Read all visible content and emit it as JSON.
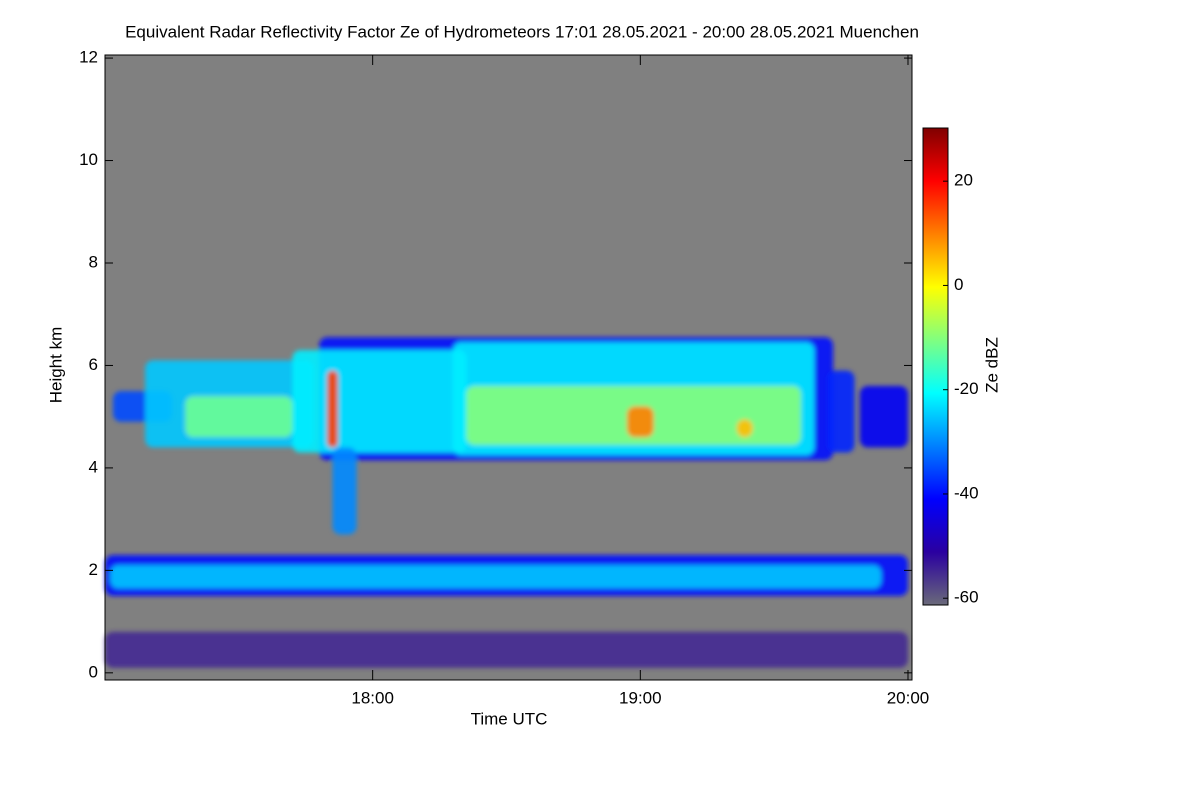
{
  "chart_data": {
    "type": "heatmap",
    "title": "Equivalent Radar Reflectivity Factor Ze of Hydrometeors   17:01 28.05.2021 - 20:00 28.05.2021 Muenchen",
    "xlabel": "Time UTC",
    "ylabel": "Height km",
    "background": "#808080",
    "xlim": [
      17.0,
      20.015
    ],
    "xticks": [
      {
        "value": 18,
        "label": "18:00"
      },
      {
        "value": 19,
        "label": "19:00"
      },
      {
        "value": 20,
        "label": "20:00"
      }
    ],
    "ylim": [
      -0.14,
      12.06
    ],
    "yticks": [
      0,
      2,
      4,
      6,
      8,
      10,
      12
    ],
    "colorbar": {
      "label": "Ze dBZ",
      "lim": [
        -61.3,
        30.2
      ],
      "ticks": [
        -60,
        -40,
        -20,
        0,
        20
      ],
      "colors": [
        "#6a6a7a",
        "#2a00a0",
        "#0000ff",
        "#0080ff",
        "#00ffff",
        "#80ff80",
        "#ffff00",
        "#ff8000",
        "#ff0000",
        "#800000"
      ]
    },
    "cells": [
      {
        "t": [
          17.0,
          20.0
        ],
        "z": [
          0.1,
          0.8
        ],
        "value": -55
      },
      {
        "t": [
          17.0,
          20.0
        ],
        "z": [
          1.5,
          2.3
        ],
        "value": -40
      },
      {
        "t": [
          17.02,
          19.9
        ],
        "z": [
          1.65,
          2.1
        ],
        "value": -25
      },
      {
        "t": [
          17.03,
          17.25
        ],
        "z": [
          4.9,
          5.5
        ],
        "value": -35
      },
      {
        "t": [
          17.8,
          19.72
        ],
        "z": [
          4.15,
          6.55
        ],
        "value": -40
      },
      {
        "t": [
          17.15,
          17.78
        ],
        "z": [
          4.4,
          6.1
        ],
        "value": -25
      },
      {
        "t": [
          17.7,
          18.35
        ],
        "z": [
          4.3,
          6.3
        ],
        "value": -22
      },
      {
        "t": [
          18.3,
          19.65
        ],
        "z": [
          4.25,
          6.45
        ],
        "value": -22
      },
      {
        "t": [
          18.35,
          19.6
        ],
        "z": [
          4.45,
          5.6
        ],
        "value": -10
      },
      {
        "t": [
          17.3,
          17.7
        ],
        "z": [
          4.6,
          5.4
        ],
        "value": -12
      },
      {
        "t": [
          18.95,
          19.05
        ],
        "z": [
          4.6,
          5.2
        ],
        "value": 10
      },
      {
        "t": [
          19.36,
          19.42
        ],
        "z": [
          4.6,
          4.95
        ],
        "value": 5
      },
      {
        "t": [
          17.83,
          17.87
        ],
        "z": [
          4.4,
          5.9
        ],
        "value": 15
      },
      {
        "t": [
          17.85,
          17.94
        ],
        "z": [
          2.7,
          4.4
        ],
        "value": -30
      },
      {
        "t": [
          19.7,
          19.8
        ],
        "z": [
          4.3,
          5.9
        ],
        "value": -38
      },
      {
        "t": [
          19.82,
          20.0
        ],
        "z": [
          4.4,
          5.6
        ],
        "value": -42
      }
    ]
  }
}
